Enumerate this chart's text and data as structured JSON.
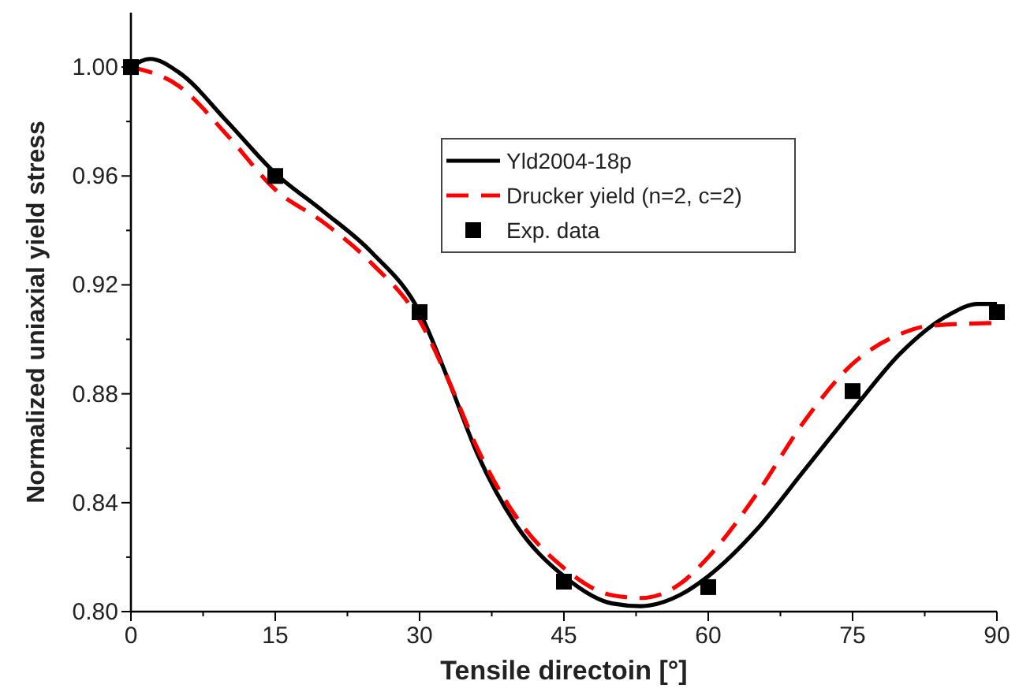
{
  "chart_data": {
    "type": "line",
    "xlabel": "Tensile directoin [°]",
    "ylabel": "Normalized uniaxial yield stress",
    "xlim": [
      0,
      90
    ],
    "ylim": [
      0.8,
      1.02
    ],
    "xticks": [
      0,
      {
        "value": 7.5,
        "label": null
      },
      15,
      {
        "value": 22.5,
        "label": null
      },
      30,
      {
        "value": 37.5,
        "label": null
      },
      45,
      {
        "value": 52.5,
        "label": null
      },
      60,
      {
        "value": 67.5,
        "label": null
      },
      75,
      {
        "value": 82.5,
        "label": null
      },
      90
    ],
    "yticks": [
      {
        "value": 0.8,
        "label": "0.80"
      },
      {
        "value": 0.82,
        "label": null
      },
      {
        "value": 0.84,
        "label": "0.84"
      },
      {
        "value": 0.86,
        "label": null
      },
      {
        "value": 0.88,
        "label": "0.88"
      },
      {
        "value": 0.9,
        "label": null
      },
      {
        "value": 0.92,
        "label": "0.92"
      },
      {
        "value": 0.94,
        "label": null
      },
      {
        "value": 0.96,
        "label": "0.96"
      },
      {
        "value": 0.98,
        "label": null
      },
      {
        "value": 1.0,
        "label": "1.00"
      }
    ],
    "grid": false,
    "legend": "top right",
    "series": [
      {
        "name": "Yld2004-18p",
        "color": "#000000",
        "line_style": "solid",
        "marker": "none",
        "x": [
          0,
          2,
          5,
          10,
          15,
          20,
          25,
          30,
          33,
          36,
          40,
          45,
          50,
          53,
          57,
          60,
          65,
          70,
          75,
          80,
          85,
          88,
          90
        ],
        "values": [
          1.0,
          1.003,
          0.998,
          0.98,
          0.961,
          0.947,
          0.932,
          0.91,
          0.885,
          0.858,
          0.832,
          0.813,
          0.803,
          0.802,
          0.806,
          0.813,
          0.83,
          0.852,
          0.874,
          0.895,
          0.909,
          0.913,
          0.913
        ]
      },
      {
        "name": "Drucker yield (n=2, c=2)",
        "color": "#ff0000",
        "line_style": "dashed",
        "marker": "none",
        "x": [
          0,
          5,
          10,
          15,
          20,
          25,
          30,
          33,
          36,
          40,
          45,
          50,
          53,
          57,
          60,
          65,
          70,
          75,
          80,
          83,
          90
        ],
        "values": [
          1.0,
          0.993,
          0.975,
          0.955,
          0.943,
          0.928,
          0.907,
          0.885,
          0.86,
          0.835,
          0.816,
          0.806,
          0.805,
          0.81,
          0.82,
          0.843,
          0.87,
          0.891,
          0.902,
          0.905,
          0.906
        ]
      },
      {
        "name": "Exp. data",
        "type": "scatter",
        "color": "#000000",
        "marker": "square",
        "x": [
          0,
          15,
          30,
          45,
          60,
          75,
          90
        ],
        "values": [
          1.0,
          0.96,
          0.91,
          0.811,
          0.809,
          0.881,
          0.91
        ]
      }
    ]
  }
}
